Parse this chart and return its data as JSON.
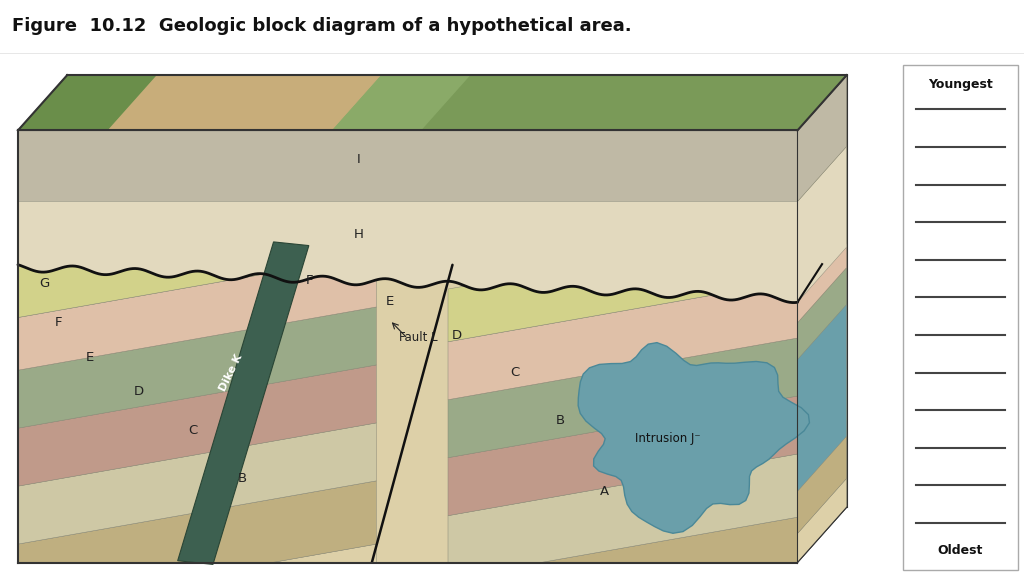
{
  "title": "Figure  10.12  Geologic block diagram of a hypothetical area.",
  "title_fontsize": 13,
  "background_color": "#ffffff",
  "legend_box": {
    "youngest_label": "Youngest",
    "oldest_label": "Oldest",
    "num_lines": 12
  },
  "colors": {
    "surface_tan": "#c8ad7a",
    "surface_green1": "#7a9e5a",
    "surface_green2": "#6a8e4a",
    "layer_I": "#bfb9a5",
    "layer_H": "#e2d9be",
    "layer_G": "#d2d28a",
    "layer_F": "#dfc0a8",
    "layer_E": "#9aaa88",
    "layer_D": "#c09a8a",
    "layer_C": "#cec8a5",
    "layer_B": "#bfaf80",
    "layer_A": "#ddd0a8",
    "dike_K": "#3d6050",
    "intrusion_J": "#6a9faa",
    "outline": "#333333",
    "right_face_base": "#b0a070",
    "bottom_face_base": "#c8b888"
  }
}
